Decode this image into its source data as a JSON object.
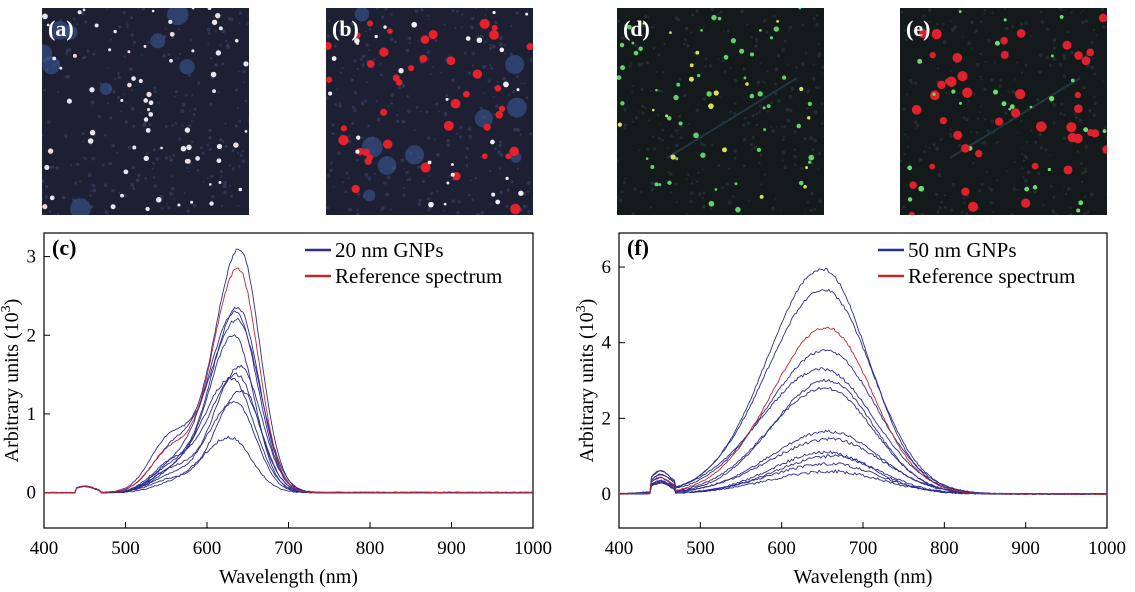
{
  "micro_panels": [
    {
      "label": "(a)",
      "tint": "white"
    },
    {
      "label": "(b)",
      "tint": "red"
    },
    {
      "label": "(d)",
      "tint": "green"
    },
    {
      "label": "(e)",
      "tint": "redgreen"
    }
  ],
  "colors": {
    "sample": "#2e2e8c",
    "reference": "#c0282a"
  },
  "chart_data": [
    {
      "type": "line",
      "panel_label": "(c)",
      "xlabel": "Wavelength (nm)",
      "ylabel": "Arbitrary units (10",
      "ylabel_sup": "3",
      "ylabel_close": ")",
      "xlim": [
        400,
        1000
      ],
      "ylim": [
        -0.45,
        3.3
      ],
      "xticks": [
        400,
        500,
        600,
        700,
        800,
        900,
        1000
      ],
      "yticks": [
        0,
        1,
        2,
        3
      ],
      "legend": [
        "20 nm GNPs",
        "Reference spectrum"
      ],
      "peaks_nm": [
        640,
        638,
        635,
        637,
        633,
        641,
        636,
        630,
        642,
        634,
        628
      ],
      "peak_values": [
        3.1,
        2.35,
        2.3,
        2.2,
        2.0,
        1.6,
        1.5,
        1.45,
        1.3,
        1.15,
        0.7
      ],
      "reference_peak": {
        "nm": 638,
        "value": 2.85
      }
    },
    {
      "type": "line",
      "panel_label": "(f)",
      "xlabel": "Wavelength (nm)",
      "ylabel": "Arbitrary units (10",
      "ylabel_sup": "3",
      "ylabel_close": ")",
      "xlim": [
        400,
        1000
      ],
      "ylim": [
        -0.9,
        6.9
      ],
      "xticks": [
        400,
        500,
        600,
        700,
        800,
        900,
        1000
      ],
      "yticks": [
        0,
        2,
        4,
        6
      ],
      "legend": [
        "50 nm GNPs",
        "Reference spectrum"
      ],
      "peaks_nm": [
        650,
        652,
        655,
        650,
        656,
        654,
        658,
        660,
        655,
        662,
        658,
        660
      ],
      "peak_values": [
        5.95,
        5.4,
        3.8,
        3.3,
        3.0,
        2.8,
        1.65,
        1.45,
        1.1,
        1.0,
        0.8,
        0.6
      ],
      "reference_peak": {
        "nm": 655,
        "value": 4.4
      }
    }
  ]
}
